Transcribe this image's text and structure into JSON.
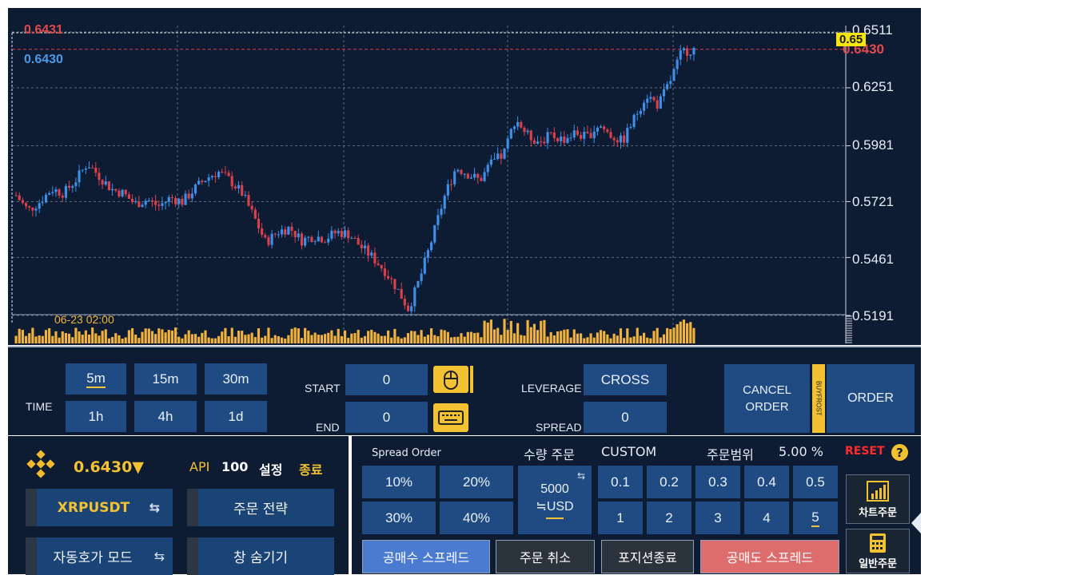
{
  "chart": {
    "y_ticks": [
      "0.6511",
      "0.6251",
      "0.5981",
      "0.5721",
      "0.5461",
      "0.5191"
    ],
    "high_marker": "0.6431",
    "current_price_left": "0.6430",
    "current_price_right": "0.6430",
    "current_price_badge": "0.65",
    "cursor_time": "06-23 02:00",
    "colors": {
      "bg": "#0d1b33",
      "up": "#3d8fe8",
      "down": "#d9404a",
      "volume": "#f2b33c",
      "grid": "#5e6a79"
    }
  },
  "chart_data": {
    "type": "candlestick",
    "ylim": [
      0.5191,
      0.6511
    ],
    "y_ticks": [
      0.6511,
      0.6251,
      0.5981,
      0.5721,
      0.5461,
      0.5191
    ],
    "close_path": [
      0.575,
      0.568,
      0.572,
      0.578,
      0.576,
      0.582,
      0.59,
      0.584,
      0.578,
      0.576,
      0.571,
      0.573,
      0.57,
      0.574,
      0.572,
      0.578,
      0.583,
      0.586,
      0.582,
      0.576,
      0.565,
      0.553,
      0.558,
      0.56,
      0.554,
      0.556,
      0.555,
      0.558,
      0.557,
      0.551,
      0.546,
      0.54,
      0.532,
      0.522,
      0.537,
      0.555,
      0.574,
      0.588,
      0.585,
      0.582,
      0.59,
      0.594,
      0.611,
      0.603,
      0.6,
      0.603,
      0.601,
      0.604,
      0.602,
      0.608,
      0.603,
      0.6,
      0.611,
      0.622,
      0.617,
      0.628,
      0.642,
      0.643
    ],
    "current_price": 0.643,
    "high": 0.6431
  },
  "controls": {
    "time_label": "TIME",
    "timeframes": [
      "5m",
      "15m",
      "30m",
      "1h",
      "4h",
      "1d"
    ],
    "selected_timeframe": "5m",
    "start_label": "START",
    "start_value": "0",
    "end_label": "END",
    "end_value": "0",
    "leverage_label": "LEVERAGE",
    "leverage_value": "CROSS",
    "spread_label": "SPREAD",
    "spread_value": "0",
    "cancel_order_line1": "CANCEL",
    "cancel_order_line2": "ORDER",
    "buyfrost_label": "BUYFROST",
    "order_label": "ORDER"
  },
  "left_panel": {
    "price": "0.6430",
    "price_arrow": "▼",
    "api_label": "API",
    "api_value": "100",
    "settings_label": "설정",
    "exit_label": "종료",
    "symbol": "XRPUSDT",
    "strategy_label": "주문 전략",
    "auto_mode_label": "자동호가 모드",
    "hide_label": "창 숨기기"
  },
  "right_panel": {
    "spread_order_label": "Spread Order",
    "qty_order_label": "수량 주문",
    "custom_label": "CUSTOM",
    "range_label": "주문범위",
    "range_value": "5.00 %",
    "reset_label": "RESET",
    "help_icon_text": "?",
    "spread_pcts": [
      "10%",
      "20%",
      "30%",
      "40%"
    ],
    "qty_amount": "5000",
    "qty_unit": "≒USD",
    "small_steps": [
      "0.1",
      "0.2",
      "0.3",
      "0.4",
      "0.5"
    ],
    "int_steps": [
      "1",
      "2",
      "3",
      "4",
      "5"
    ],
    "selected_int_step": "5",
    "long_spread_label": "공매수 스프레드",
    "cancel_label": "주문 취소",
    "close_position_label": "포지션종료",
    "short_spread_label": "공매도 스프레드",
    "chart_order_label": "차트주문",
    "normal_order_label": "일반주문"
  }
}
